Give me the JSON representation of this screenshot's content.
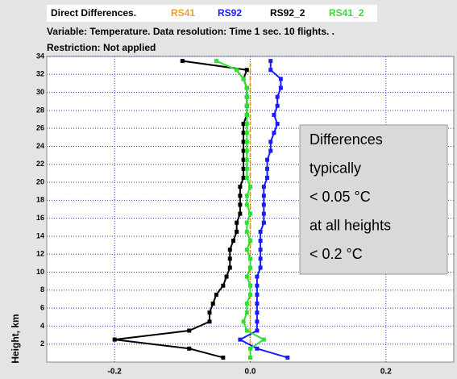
{
  "chart_data": {
    "type": "line",
    "title": "Direct Differences.",
    "subtitle": "Variable: Temperature. Data resolution: Time 1 sec. 10 flights. .",
    "restriction": "Restriction: Not applied",
    "ylabel": "Height, km",
    "annotation": [
      "Differences",
      "typically",
      "< 0.05 °C",
      "at all heights",
      "< 0.2 °C"
    ],
    "xlim": [
      -0.3,
      0.3
    ],
    "xticks": [
      -0.2,
      {
        "value": 0,
        "label": "0.0"
      },
      0.2
    ],
    "ylim": [
      0,
      34
    ],
    "yticks": [
      2,
      4,
      6,
      8,
      10,
      12,
      14,
      16,
      18,
      20,
      22,
      24,
      26,
      28,
      30,
      32,
      34
    ],
    "grid": true,
    "y": [
      0.5,
      1.5,
      2.5,
      3.5,
      4.5,
      5.5,
      6.5,
      7.5,
      8.5,
      9.5,
      10.5,
      11.5,
      12.5,
      13.5,
      14.5,
      15.5,
      16.5,
      17.5,
      18.5,
      19.5,
      20.5,
      21.5,
      22.5,
      23.5,
      24.5,
      25.5,
      26.5,
      27.5,
      28.5,
      29.5,
      30.5,
      31.5,
      32.5,
      33.5
    ],
    "series": [
      {
        "name": "RS41",
        "color": "#f0a020",
        "line_style": "dashed",
        "values": [
          0,
          0,
          0,
          0,
          0,
          0,
          0,
          0,
          0,
          0,
          0,
          0,
          0,
          0,
          0,
          0,
          0,
          0,
          0,
          0,
          0,
          0,
          0,
          0,
          0,
          0,
          0,
          0,
          0,
          0,
          0,
          0,
          0,
          0
        ]
      },
      {
        "name": "RS92",
        "color": "#1a1aff",
        "line_style": "solid",
        "values": [
          0.055,
          0.01,
          -0.015,
          0.01,
          0.01,
          0.01,
          0.01,
          0.01,
          0.01,
          0.01,
          0.015,
          0.015,
          0.015,
          0.015,
          0.015,
          0.02,
          0.02,
          0.02,
          0.02,
          0.02,
          0.025,
          0.025,
          0.025,
          0.03,
          0.03,
          0.035,
          0.04,
          0.035,
          0.04,
          0.04,
          0.045,
          0.045,
          0.03,
          0.03
        ]
      },
      {
        "name": "RS92_2",
        "color": "#000000",
        "line_style": "solid",
        "values": [
          -0.04,
          -0.09,
          -0.2,
          -0.09,
          -0.06,
          -0.06,
          -0.055,
          -0.05,
          -0.04,
          -0.035,
          -0.03,
          -0.03,
          -0.03,
          -0.025,
          -0.02,
          -0.02,
          -0.015,
          -0.015,
          -0.015,
          -0.015,
          -0.01,
          -0.01,
          -0.01,
          -0.01,
          -0.01,
          -0.01,
          -0.01,
          -0.005,
          -0.005,
          -0.005,
          -0.005,
          -0.01,
          -0.005,
          -0.1
        ]
      },
      {
        "name": "RS41_2",
        "color": "#33dd33",
        "line_style": "solid",
        "values": [
          0,
          0,
          0.02,
          -0.005,
          -0.01,
          -0.005,
          -0.005,
          0,
          0,
          -0.005,
          0,
          0,
          -0.005,
          0,
          -0.005,
          -0.005,
          0,
          -0.005,
          -0.005,
          0,
          -0.005,
          -0.005,
          -0.005,
          -0.005,
          -0.005,
          -0.005,
          -0.005,
          -0.005,
          -0.005,
          -0.005,
          -0.005,
          -0.01,
          -0.02,
          -0.05
        ]
      }
    ]
  }
}
